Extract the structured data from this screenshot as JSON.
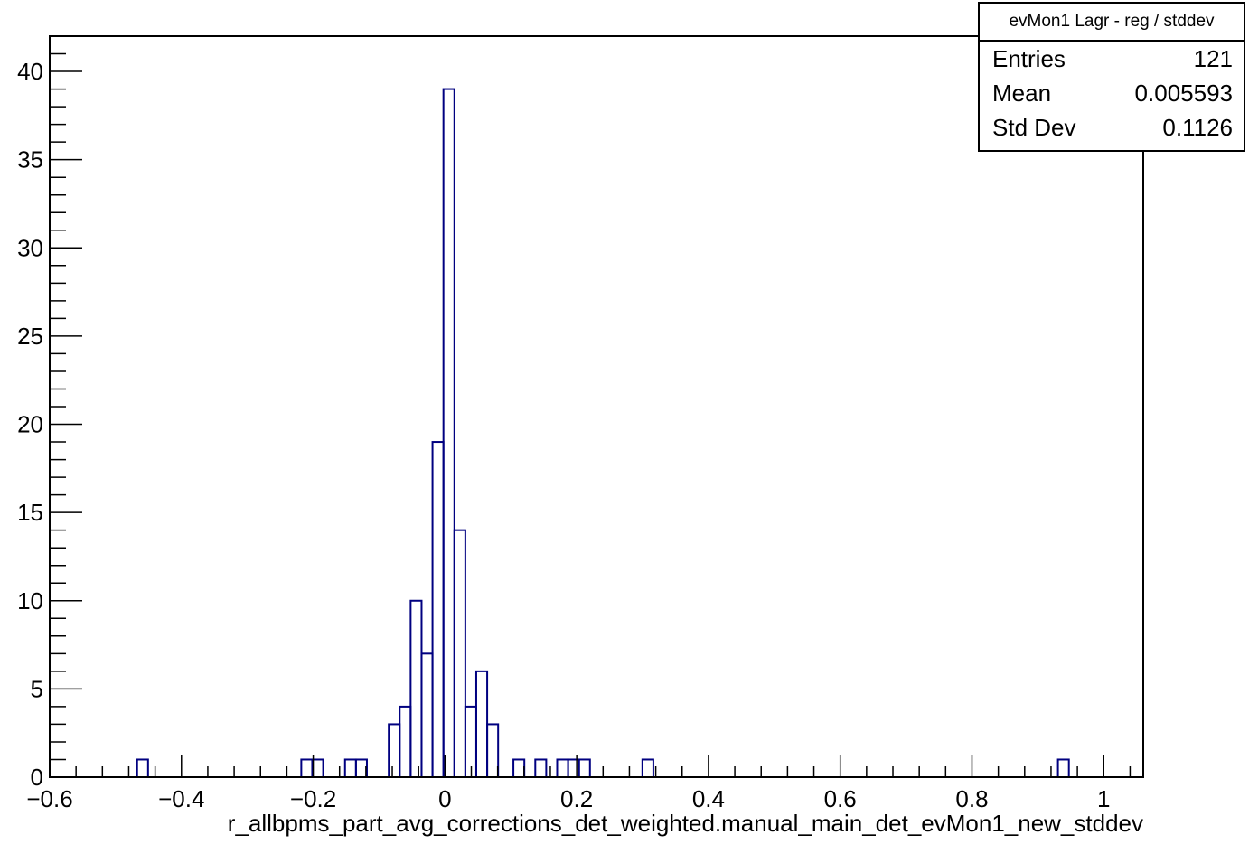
{
  "chart_data": {
    "type": "histogram",
    "xlabel": "r_allbpms_part_avg_corrections_det_weighted.manual_main_det_evMon1_new_stddev",
    "ylabel": "",
    "xlim": [
      -0.6,
      1.06
    ],
    "ylim": [
      0,
      42
    ],
    "x_ticks": [
      "−0.6",
      "−0.4",
      "−0.2",
      "0",
      "0.2",
      "0.4",
      "0.6",
      "0.8",
      "1"
    ],
    "y_ticks": [
      "0",
      "5",
      "10",
      "15",
      "20",
      "25",
      "30",
      "35",
      "40"
    ],
    "bin_width": 0.0166,
    "bins": [
      {
        "x": -0.4673,
        "count": 1
      },
      {
        "x": -0.2181,
        "count": 1
      },
      {
        "x": -0.2015,
        "count": 1
      },
      {
        "x": -0.1517,
        "count": 1
      },
      {
        "x": -0.1351,
        "count": 1
      },
      {
        "x": -0.0853,
        "count": 3
      },
      {
        "x": -0.0687,
        "count": 4
      },
      {
        "x": -0.0521,
        "count": 10
      },
      {
        "x": -0.0355,
        "count": 7
      },
      {
        "x": -0.0189,
        "count": 19
      },
      {
        "x": -0.0023,
        "count": 39
      },
      {
        "x": 0.0143,
        "count": 14
      },
      {
        "x": 0.0309,
        "count": 4
      },
      {
        "x": 0.0475,
        "count": 6
      },
      {
        "x": 0.0641,
        "count": 3
      },
      {
        "x": 0.1039,
        "count": 1
      },
      {
        "x": 0.1371,
        "count": 1
      },
      {
        "x": 0.1703,
        "count": 1
      },
      {
        "x": 0.1869,
        "count": 1
      },
      {
        "x": 0.2035,
        "count": 1
      },
      {
        "x": 0.2997,
        "count": 1
      },
      {
        "x": 0.9305,
        "count": 1
      }
    ],
    "line_color": "#000080",
    "grid": false
  },
  "stats": {
    "title": "evMon1 Lagr - reg / stddev",
    "rows": [
      {
        "label": "Entries",
        "value": "121"
      },
      {
        "label": "Mean",
        "value": "0.005593"
      },
      {
        "label": "Std Dev",
        "value": "0.1126"
      }
    ]
  }
}
